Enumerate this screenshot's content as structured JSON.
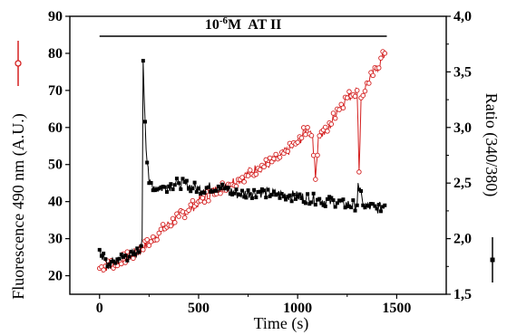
{
  "chart_data": {
    "type": "scatter",
    "title": "",
    "annotation": {
      "base": "10",
      "exponent": "-6",
      "text": "M  AT II",
      "x_range": [
        0,
        1450
      ]
    },
    "xlabel": "Time (s)",
    "ylabel_left": "Fluorescence 490 nm (A.U.)",
    "ylabel_right": "Ratio (340/380)",
    "xlim": [
      -150,
      1750
    ],
    "ylim_left": [
      15,
      90
    ],
    "ylim_right": [
      1.5,
      4.0
    ],
    "x_ticks": [
      "0",
      "500",
      "1000",
      "1500"
    ],
    "y_left_ticks": [
      "20",
      "30",
      "40",
      "50",
      "60",
      "70",
      "80",
      "90"
    ],
    "y_right_ticks": [
      "1,5",
      "2,0",
      "2,5",
      "3,0",
      "3,5",
      "4,0"
    ],
    "grid": false,
    "series": [
      {
        "color": "#d42020",
        "marker": "open-circle",
        "axis": "left",
        "key_points": [
          [
            0,
            22
          ],
          [
            100,
            24
          ],
          [
            200,
            26.5
          ],
          [
            300,
            31.5
          ],
          [
            400,
            36
          ],
          [
            500,
            40
          ],
          [
            600,
            43.5
          ],
          [
            700,
            46
          ],
          [
            800,
            49
          ],
          [
            900,
            51.5
          ],
          [
            1000,
            56
          ],
          [
            1050,
            60
          ],
          [
            1075,
            58
          ],
          [
            1090,
            46
          ],
          [
            1105,
            58
          ],
          [
            1150,
            59
          ],
          [
            1200,
            65
          ],
          [
            1250,
            68
          ],
          [
            1300,
            70
          ],
          [
            1310,
            48
          ],
          [
            1320,
            68
          ],
          [
            1350,
            72
          ],
          [
            1400,
            76
          ],
          [
            1440,
            80
          ]
        ]
      },
      {
        "color": "#000000",
        "marker": "filled-square",
        "axis": "right",
        "key_points": [
          [
            0,
            1.9
          ],
          [
            40,
            1.75
          ],
          [
            100,
            1.82
          ],
          [
            200,
            1.88
          ],
          [
            215,
            2.0
          ],
          [
            220,
            3.6
          ],
          [
            235,
            2.8
          ],
          [
            250,
            2.5
          ],
          [
            300,
            2.45
          ],
          [
            400,
            2.5
          ],
          [
            500,
            2.45
          ],
          [
            600,
            2.47
          ],
          [
            700,
            2.4
          ],
          [
            800,
            2.42
          ],
          [
            900,
            2.4
          ],
          [
            1000,
            2.38
          ],
          [
            1100,
            2.35
          ],
          [
            1200,
            2.32
          ],
          [
            1300,
            2.3
          ],
          [
            1305,
            2.5
          ],
          [
            1330,
            2.3
          ],
          [
            1400,
            2.27
          ],
          [
            1440,
            2.3
          ]
        ]
      }
    ]
  }
}
